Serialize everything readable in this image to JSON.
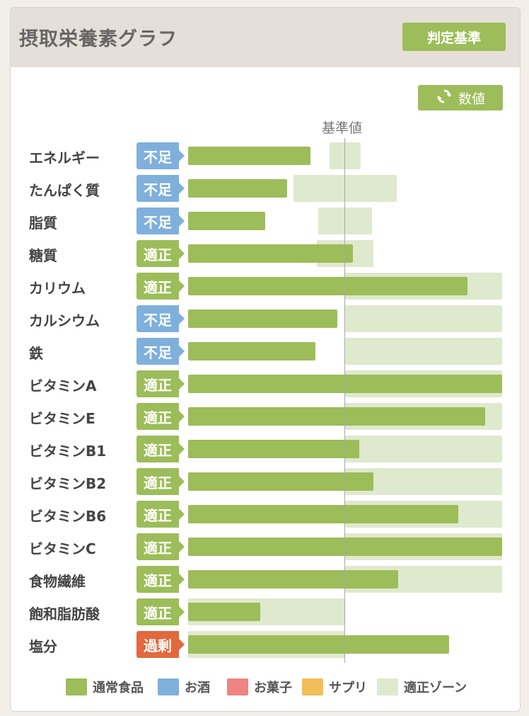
{
  "header": {
    "title": "摂取栄養素グラフ",
    "criteria_button": "判定基準"
  },
  "toggle_button": {
    "label": "数値",
    "icon": "refresh-icon"
  },
  "reference_label": "基準値",
  "colors": {
    "normal_food": "#9cbd59",
    "alcohol": "#7fb0dc",
    "snacks": "#ee8583",
    "supplement": "#f2be58",
    "proper_zone": "#dfe9ce",
    "status_deficient": "#7fb0dc",
    "status_proper": "#9cbd59",
    "status_excess": "#e3683e"
  },
  "chart_data": {
    "type": "bar",
    "orientation": "horizontal",
    "reference_label": "基準値",
    "reference_value": 100,
    "categories": [
      "エネルギー",
      "たんぱく質",
      "脂質",
      "糖質",
      "カリウム",
      "カルシウム",
      "鉄",
      "ビタミンA",
      "ビタミンE",
      "ビタミンB1",
      "ビタミンB2",
      "ビタミンB6",
      "ビタミンC",
      "食物繊維",
      "飽和脂肪酸",
      "塩分"
    ],
    "status": [
      "不足",
      "不足",
      "不足",
      "適正",
      "適正",
      "不足",
      "不足",
      "適正",
      "適正",
      "適正",
      "適正",
      "適正",
      "適正",
      "適正",
      "適正",
      "過剰"
    ],
    "status_type": [
      "deficient",
      "deficient",
      "deficient",
      "proper",
      "proper",
      "deficient",
      "deficient",
      "proper",
      "proper",
      "proper",
      "proper",
      "proper",
      "proper",
      "proper",
      "proper",
      "excess"
    ],
    "values_percent_of_reference": [
      78,
      63,
      49,
      105,
      178,
      95,
      81,
      200,
      189,
      109,
      118,
      172,
      200,
      134,
      46,
      166
    ],
    "proper_zone_percent": [
      [
        90,
        110
      ],
      [
        67,
        133
      ],
      [
        83,
        117
      ],
      [
        82,
        118
      ],
      [
        100,
        200
      ],
      [
        100,
        200
      ],
      [
        100,
        200
      ],
      [
        100,
        200
      ],
      [
        100,
        200
      ],
      [
        100,
        200
      ],
      [
        100,
        200
      ],
      [
        100,
        200
      ],
      [
        100,
        200
      ],
      [
        100,
        200
      ],
      [
        0,
        100
      ],
      [
        0,
        100
      ]
    ],
    "xlim": [
      0,
      200
    ],
    "legend": [
      "通常食品",
      "お酒",
      "お菓子",
      "サプリ",
      "適正ゾーン"
    ]
  },
  "legend": [
    {
      "label": "通常食品",
      "color": "#9cbd59"
    },
    {
      "label": "お酒",
      "color": "#7fb0dc"
    },
    {
      "label": "お菓子",
      "color": "#ee8583"
    },
    {
      "label": "サプリ",
      "color": "#f2be58"
    },
    {
      "label": "適正ゾーン",
      "color": "#dfe9ce"
    }
  ]
}
